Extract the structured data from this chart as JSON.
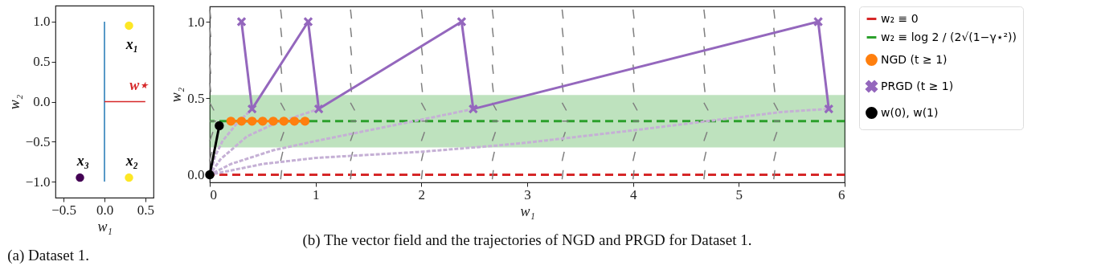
{
  "chart_data": [
    {
      "type": "scatter",
      "xlabel": "w₁",
      "ylabel": "w₂",
      "xlim": [
        -0.6,
        0.6
      ],
      "ylim": [
        -1.2,
        1.2
      ],
      "xticks": [
        {
          "value": -0.5,
          "label": "−0.5"
        },
        {
          "value": 0,
          "label": "0.0"
        },
        0.5
      ],
      "yticks": [
        {
          "value": -1,
          "label": "−1.0"
        },
        {
          "value": -0.5,
          "label": "−0.5"
        },
        {
          "value": 0,
          "label": "0.0"
        },
        0.5,
        {
          "value": 1,
          "label": "1.0"
        }
      ],
      "series": [
        {
          "type": "line",
          "color": "#1f77b4",
          "x": [
            0,
            0
          ],
          "values": [
            -1,
            1
          ]
        },
        {
          "type": "line",
          "color": "#d62728",
          "x": [
            0,
            0.5
          ],
          "values": [
            0,
            0
          ]
        },
        {
          "marker": "circle",
          "x": [
            0.3,
            0.3,
            -0.3
          ],
          "values": [
            0.95,
            -0.95,
            -0.95
          ],
          "colors": [
            "#fde725",
            "#fde725",
            "#440154"
          ]
        }
      ],
      "annotations": [
        {
          "text": "x₁",
          "x": 0.3,
          "y": 0.95
        },
        {
          "text": "x₂",
          "x": 0.3,
          "y": -0.95
        },
        {
          "text": "x₃",
          "x": -0.3,
          "y": -0.95
        },
        {
          "text": "w⋆",
          "x": 0.5,
          "y": 0
        },
        "(a) Dataset 1."
      ]
    },
    {
      "type": "line",
      "xlabel": "w₁",
      "ylabel": "w₂",
      "xlim": [
        0,
        6
      ],
      "ylim": [
        -0.05,
        1.1
      ],
      "xticks": [
        0,
        1,
        2,
        3,
        4,
        5,
        6
      ],
      "yticks": [
        {
          "value": 0,
          "label": "0.0"
        },
        0.5,
        {
          "value": 1,
          "label": "1.0"
        }
      ],
      "legend": "right",
      "bands": [
        {
          "axis": "y",
          "from": 0.18,
          "to": 0.52,
          "color": "#2ca02c"
        }
      ],
      "ref_lines": [
        {
          "axis": "y",
          "value": 0,
          "label": "w₂ ≡ 0",
          "color": "#d62728",
          "line_style": "dashed"
        },
        {
          "axis": "y",
          "value": 0.35,
          "label": "w₂ ≡ log 2 / (2√(1−γ⋆²))",
          "color": "#2ca02c",
          "line_style": "dashed"
        }
      ],
      "series": [
        {
          "color": "#7f7f7f",
          "x": [
            0,
            0.01,
            null,
            0.67,
            0.68,
            null,
            1.33,
            1.34,
            null,
            2,
            2.01,
            null,
            2.67,
            2.68,
            null,
            3.33,
            3.34,
            null,
            4,
            4.01,
            null,
            4.67,
            4.68,
            null,
            5.33,
            5.34,
            null
          ],
          "values": [
            1.08,
            1.02,
            null,
            1.08,
            1.02,
            null,
            1.08,
            1.02,
            null,
            1.08,
            1.02,
            null,
            1.08,
            1.02,
            null,
            1.08,
            1.02,
            null,
            1.08,
            1.02,
            null,
            1.08,
            1.02,
            null,
            1.08,
            1.02,
            null
          ]
        },
        {
          "color": "#7f7f7f",
          "x": [
            0,
            0.01,
            null,
            0.67,
            0.68,
            null,
            1.33,
            1.34,
            null,
            2,
            2.01,
            null,
            2.67,
            2.68,
            null,
            3.33,
            3.34,
            null,
            4,
            4.01,
            null,
            4.67,
            4.68,
            null,
            5.33,
            5.34,
            null
          ],
          "values": [
            0.96,
            0.9,
            null,
            0.96,
            0.9,
            null,
            0.96,
            0.9,
            null,
            0.96,
            0.9,
            null,
            0.96,
            0.9,
            null,
            0.96,
            0.9,
            null,
            0.96,
            0.9,
            null,
            0.96,
            0.9,
            null,
            0.96,
            0.9,
            null
          ]
        },
        {
          "color": "#7f7f7f",
          "x": [
            0,
            0.01,
            null,
            0.67,
            0.68,
            null,
            1.33,
            1.34,
            null,
            2,
            2.01,
            null,
            2.67,
            2.68,
            null,
            3.33,
            3.34,
            null,
            4,
            4.01,
            null,
            4.67,
            4.68,
            null,
            5.33,
            5.34,
            null
          ],
          "values": [
            0.84,
            0.78,
            null,
            0.84,
            0.78,
            null,
            0.84,
            0.78,
            null,
            0.84,
            0.78,
            null,
            0.84,
            0.78,
            null,
            0.84,
            0.78,
            null,
            0.84,
            0.78,
            null,
            0.84,
            0.78,
            null,
            0.84,
            0.78,
            null
          ]
        },
        {
          "color": "#7f7f7f",
          "x": [
            0,
            0.01,
            null,
            0.67,
            0.68,
            null,
            1.33,
            1.34,
            null,
            2,
            2.01,
            null,
            2.67,
            2.68,
            null,
            3.33,
            3.34,
            null,
            4,
            4.01,
            null,
            4.67,
            4.68,
            null,
            5.33,
            5.34,
            null
          ],
          "values": [
            0.72,
            0.66,
            null,
            0.72,
            0.66,
            null,
            0.72,
            0.66,
            null,
            0.72,
            0.66,
            null,
            0.72,
            0.66,
            null,
            0.72,
            0.66,
            null,
            0.72,
            0.66,
            null,
            0.72,
            0.66,
            null,
            0.72,
            0.66,
            null
          ]
        },
        {
          "color": "#7f7f7f",
          "x": [
            0,
            0.01,
            null,
            0.67,
            0.68,
            null,
            1.33,
            1.34,
            null,
            2,
            2.01,
            null,
            2.67,
            2.68,
            null,
            3.33,
            3.34,
            null,
            4,
            4.01,
            null,
            4.67,
            4.68,
            null,
            5.33,
            5.34,
            null
          ],
          "values": [
            0.6,
            0.54,
            null,
            0.6,
            0.54,
            null,
            0.6,
            0.54,
            null,
            0.6,
            0.54,
            null,
            0.6,
            0.54,
            null,
            0.6,
            0.54,
            null,
            0.6,
            0.54,
            null,
            0.6,
            0.54,
            null,
            0.6,
            0.54,
            null
          ]
        },
        {
          "color": "#7f7f7f",
          "x": [
            0,
            0.04,
            null,
            0.67,
            0.71,
            null,
            1.33,
            1.37,
            null,
            2,
            2.04,
            null,
            2.67,
            2.71,
            null,
            3.33,
            3.37,
            null,
            4,
            4.04,
            null,
            4.67,
            4.71,
            null,
            5.33,
            5.37,
            null
          ],
          "values": [
            0.47,
            0.42,
            null,
            0.47,
            0.42,
            null,
            0.47,
            0.42,
            null,
            0.47,
            0.42,
            null,
            0.47,
            0.42,
            null,
            0.47,
            0.42,
            null,
            0.47,
            0.42,
            null,
            0.47,
            0.42,
            null,
            0.47,
            0.42,
            null
          ]
        },
        {
          "color": "#7f7f7f",
          "x": [
            0,
            0.06,
            null,
            0.67,
            0.73,
            null,
            1.33,
            1.39,
            null,
            2,
            2.06,
            null,
            2.67,
            2.73,
            null,
            3.33,
            3.39,
            null,
            4,
            4.06,
            null,
            4.67,
            4.73,
            null,
            5.33,
            5.39,
            null
          ],
          "values": [
            0.35,
            0.35,
            null,
            0.35,
            0.35,
            null,
            0.35,
            0.35,
            null,
            0.35,
            0.35,
            null,
            0.35,
            0.35,
            null,
            0.35,
            0.35,
            null,
            0.35,
            0.35,
            null,
            0.35,
            0.35,
            null,
            0.35,
            0.35,
            null
          ]
        },
        {
          "color": "#7f7f7f",
          "x": [
            0,
            0.03,
            null,
            0.67,
            0.7,
            null,
            1.33,
            1.36,
            null,
            2,
            2.03,
            null,
            2.67,
            2.7,
            null,
            3.33,
            3.36,
            null,
            4,
            4.03,
            null,
            4.67,
            4.7,
            null,
            5.33,
            5.36,
            null
          ],
          "values": [
            0.22,
            0.28,
            null,
            0.22,
            0.28,
            null,
            0.22,
            0.28,
            null,
            0.22,
            0.28,
            null,
            0.22,
            0.28,
            null,
            0.22,
            0.28,
            null,
            0.22,
            0.28,
            null,
            0.22,
            0.28,
            null,
            0.22,
            0.28,
            null
          ]
        },
        {
          "color": "#7f7f7f",
          "x": [
            0,
            0.02,
            null,
            0.67,
            0.69,
            null,
            1.33,
            1.35,
            null,
            2,
            2.02,
            null,
            2.67,
            2.69,
            null,
            3.33,
            3.35,
            null,
            4,
            4.02,
            null,
            4.67,
            4.69,
            null,
            5.33,
            5.35,
            null
          ],
          "values": [
            0.09,
            0.15,
            null,
            0.09,
            0.15,
            null,
            0.09,
            0.15,
            null,
            0.09,
            0.15,
            null,
            0.09,
            0.15,
            null,
            0.09,
            0.15,
            null,
            0.09,
            0.15,
            null,
            0.09,
            0.15,
            null,
            0.09,
            0.15,
            null
          ]
        },
        {
          "color": "#7f7f7f",
          "x": [
            0,
            0.01,
            null,
            0.67,
            0.68,
            null,
            1.33,
            1.34,
            null,
            2,
            2.01,
            null,
            2.67,
            2.68,
            null,
            3.33,
            3.34,
            null,
            4,
            4.01,
            null,
            4.67,
            4.68,
            null,
            5.33,
            5.34,
            null
          ],
          "values": [
            -0.03,
            0.03,
            null,
            -0.03,
            0.03,
            null,
            -0.03,
            0.03,
            null,
            -0.03,
            0.03,
            null,
            -0.03,
            0.03,
            null,
            -0.03,
            0.03,
            null,
            -0.03,
            0.03,
            null,
            -0.03,
            0.03,
            null,
            -0.03,
            0.03,
            null
          ]
        },
        {
          "color": "#c5b0d5",
          "line_style": "dotted",
          "x": [
            0,
            0.05,
            0.12,
            0.25,
            0.4
          ],
          "values": [
            0,
            0.12,
            0.22,
            0.33,
            0.43
          ]
        },
        {
          "color": "#c5b0d5",
          "line_style": "dotted",
          "x": [
            0,
            0.1,
            0.35,
            0.6,
            1.03
          ],
          "values": [
            0,
            0.1,
            0.25,
            0.33,
            0.43
          ]
        },
        {
          "color": "#c5b0d5",
          "line_style": "dotted",
          "x": [
            0,
            0.2,
            0.6,
            1,
            1.5,
            2,
            2.49
          ],
          "values": [
            0,
            0.07,
            0.16,
            0.22,
            0.29,
            0.36,
            0.43
          ]
        },
        {
          "color": "#c5b0d5",
          "line_style": "dotted",
          "x": [
            0,
            0.5,
            1,
            2,
            2.7,
            3,
            4,
            4.7,
            5.4,
            5.84
          ],
          "values": [
            0,
            0.07,
            0.11,
            0.15,
            0.19,
            0.21,
            0.29,
            0.35,
            0.41,
            0.43
          ]
        },
        {
          "name": "NGD (t ≥ 1)",
          "color": "#ff7f0e",
          "marker": "circle",
          "x": [
            0.2,
            0.3,
            0.4,
            0.5,
            0.6,
            0.7,
            0.8,
            0.9
          ],
          "values": [
            0.35,
            0.35,
            0.35,
            0.35,
            0.35,
            0.35,
            0.35,
            0.35
          ]
        },
        {
          "name": "PRGD (t ≥ 1)",
          "color": "#9467bd",
          "marker": "cross",
          "x": [
            0.3,
            0.4,
            0.93,
            1.03,
            2.38,
            2.49,
            5.75,
            5.85
          ],
          "values": [
            1.0,
            0.43,
            1.0,
            0.43,
            1.0,
            0.43,
            1.0,
            0.43
          ]
        },
        {
          "name": "w(0), w(1)",
          "color": "#000000",
          "marker": "circle",
          "x": [
            0,
            0.09
          ],
          "values": [
            0,
            0.32
          ]
        }
      ],
      "annotations": [
        "(b) The vector field and the trajectories of NGD and PRGD for Dataset 1."
      ]
    }
  ]
}
